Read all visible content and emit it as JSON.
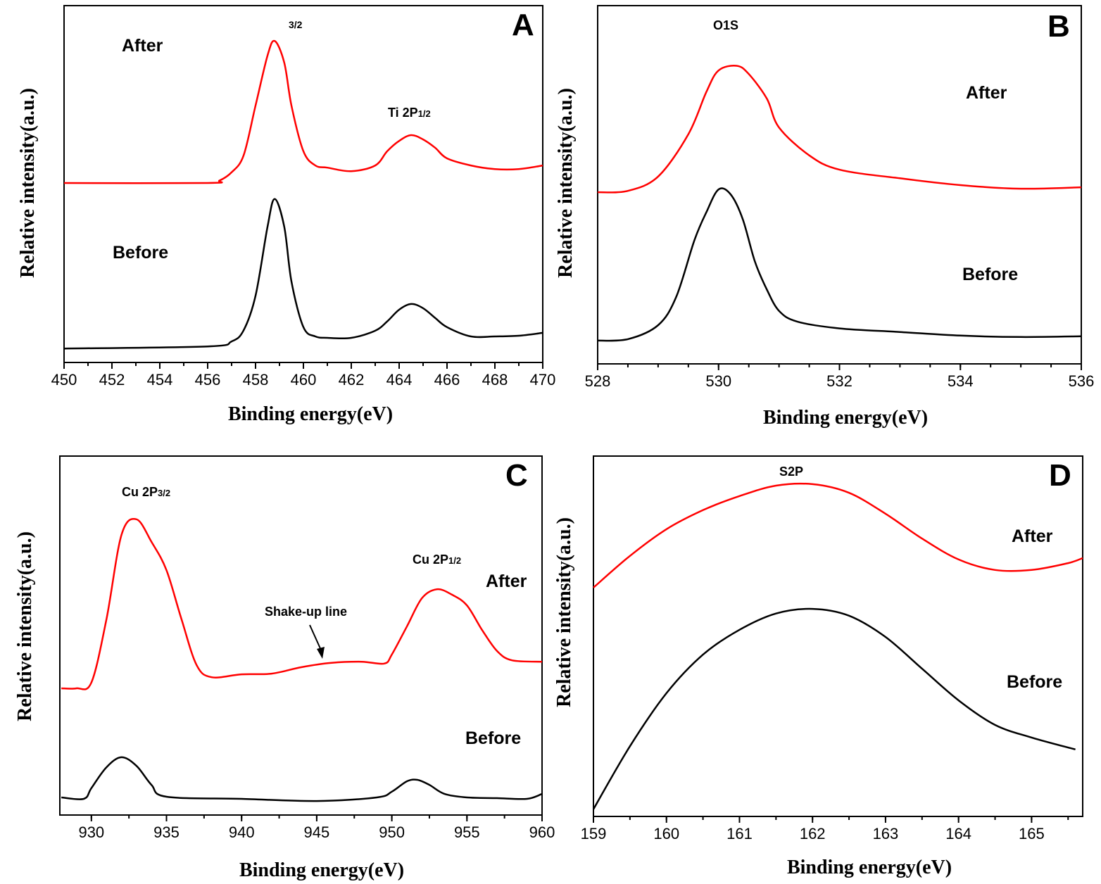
{
  "chart_data": [
    {
      "type": "line",
      "panel": "A",
      "xlabel": "Binding energy(eV)",
      "ylabel": "Relative intensity(a.u.)",
      "xlim": [
        450,
        470
      ],
      "xticks": [
        450,
        452,
        454,
        456,
        458,
        460,
        462,
        464,
        466,
        468,
        470
      ],
      "ylim": [
        0,
        100
      ],
      "grid": false,
      "annotations": [
        {
          "text": "After"
        },
        {
          "text": "Before"
        },
        {
          "text": "",
          "sub": "3/2"
        },
        {
          "text": "Ti 2P",
          "sub": "1/2"
        }
      ],
      "series": [
        {
          "label": "After",
          "color": "#ff0000",
          "points": [
            [
              450,
              50.3
            ],
            [
              456,
              50.3
            ],
            [
              456.5,
              51
            ],
            [
              457,
              53.3
            ],
            [
              457.5,
              58
            ],
            [
              458,
              72
            ],
            [
              458.5,
              86
            ],
            [
              458.8,
              90.1
            ],
            [
              459.2,
              84
            ],
            [
              459.5,
              72
            ],
            [
              460,
              59.2
            ],
            [
              460.5,
              55.2
            ],
            [
              461,
              54.6
            ],
            [
              462,
              53.6
            ],
            [
              463,
              55.2
            ],
            [
              463.5,
              59.2
            ],
            [
              464,
              62.1
            ],
            [
              464.5,
              63.7
            ],
            [
              465,
              62.5
            ],
            [
              465.5,
              60.2
            ],
            [
              466,
              57.2
            ],
            [
              467,
              55.2
            ],
            [
              468,
              54.2
            ],
            [
              469,
              54.2
            ],
            [
              470,
              55.2
            ]
          ]
        },
        {
          "label": "Before",
          "color": "#000000",
          "points": [
            [
              450,
              3.9
            ],
            [
              456,
              4.5
            ],
            [
              457,
              5.9
            ],
            [
              457.5,
              9
            ],
            [
              458,
              18.7
            ],
            [
              458.5,
              38
            ],
            [
              458.8,
              45.8
            ],
            [
              459.2,
              38
            ],
            [
              459.5,
              22.7
            ],
            [
              460,
              9.9
            ],
            [
              460.5,
              7.3
            ],
            [
              461,
              6.9
            ],
            [
              462,
              6.9
            ],
            [
              463,
              8.9
            ],
            [
              463.5,
              11.5
            ],
            [
              464,
              14.8
            ],
            [
              464.5,
              16.4
            ],
            [
              465,
              15.2
            ],
            [
              465.5,
              12.5
            ],
            [
              466,
              9.9
            ],
            [
              467,
              7.3
            ],
            [
              468,
              7.3
            ],
            [
              469,
              7.5
            ],
            [
              470,
              8.3
            ]
          ]
        }
      ]
    },
    {
      "type": "line",
      "panel": "B",
      "xlabel": "Binding energy(eV)",
      "ylabel": "Relative intensity(a.u.)",
      "xlim": [
        528,
        536
      ],
      "xticks": [
        528,
        530,
        532,
        534,
        536
      ],
      "ylim": [
        0,
        100
      ],
      "grid": false,
      "annotations": [
        {
          "text": "O1S"
        },
        {
          "text": "After"
        },
        {
          "text": "Before"
        }
      ],
      "series": [
        {
          "label": "After",
          "color": "#ff0000",
          "points": [
            [
              528,
              47.9
            ],
            [
              528.5,
              48.3
            ],
            [
              529,
              52.3
            ],
            [
              529.5,
              64.1
            ],
            [
              529.8,
              76
            ],
            [
              530,
              81.9
            ],
            [
              530.3,
              83.2
            ],
            [
              530.5,
              80.9
            ],
            [
              530.8,
              74
            ],
            [
              531,
              66
            ],
            [
              531.5,
              58.2
            ],
            [
              532,
              54.2
            ],
            [
              533,
              51.8
            ],
            [
              534,
              49.9
            ],
            [
              535,
              48.9
            ],
            [
              536,
              49.3
            ]
          ]
        },
        {
          "label": "Before",
          "color": "#000000",
          "points": [
            [
              528,
              6.5
            ],
            [
              528.5,
              6.9
            ],
            [
              529,
              10.8
            ],
            [
              529.3,
              18.7
            ],
            [
              529.6,
              34.5
            ],
            [
              529.8,
              42.4
            ],
            [
              530,
              48.7
            ],
            [
              530.2,
              47.3
            ],
            [
              530.4,
              40.4
            ],
            [
              530.6,
              28.6
            ],
            [
              530.8,
              20.7
            ],
            [
              531,
              14.8
            ],
            [
              531.3,
              11.8
            ],
            [
              532,
              9.9
            ],
            [
              533,
              8.9
            ],
            [
              534,
              7.9
            ],
            [
              535,
              7.5
            ],
            [
              536,
              7.7
            ]
          ]
        }
      ]
    },
    {
      "type": "line",
      "panel": "C",
      "xlabel": "Binding energy(eV)",
      "ylabel": "Relative intensity(a.u.)",
      "xlim": [
        927.9,
        960
      ],
      "xticks": [
        930,
        935,
        940,
        945,
        950,
        955,
        960
      ],
      "ylim": [
        0,
        100
      ],
      "grid": false,
      "annotations": [
        {
          "text": "Cu 2P",
          "sub": "3/2"
        },
        {
          "text": "Cu 2P",
          "sub": "1/2"
        },
        {
          "text": "After"
        },
        {
          "text": "Shake-up line"
        },
        {
          "text": "Before"
        }
      ],
      "series": [
        {
          "label": "After",
          "color": "#ff0000",
          "points": [
            [
              928,
              35.3
            ],
            [
              929,
              35.3
            ],
            [
              930,
              36.9
            ],
            [
              931,
              54.5
            ],
            [
              932,
              78
            ],
            [
              933,
              82.4
            ],
            [
              934,
              76.1
            ],
            [
              935,
              68.2
            ],
            [
              936,
              54.5
            ],
            [
              937,
              41.8
            ],
            [
              938,
              38.4
            ],
            [
              940,
              39.2
            ],
            [
              942,
              39.4
            ],
            [
              944,
              41.2
            ],
            [
              946,
              42.4
            ],
            [
              948,
              42.7
            ],
            [
              949.5,
              42.2
            ],
            [
              950,
              44.7
            ],
            [
              951,
              52.5
            ],
            [
              952,
              60.4
            ],
            [
              953,
              62.9
            ],
            [
              954,
              61.4
            ],
            [
              955,
              58.4
            ],
            [
              956,
              51.6
            ],
            [
              957,
              45.7
            ],
            [
              958,
              43.1
            ],
            [
              960,
              42.7
            ]
          ]
        },
        {
          "label": "Before",
          "color": "#000000",
          "points": [
            [
              928,
              4.9
            ],
            [
              929.5,
              4.5
            ],
            [
              930,
              7.5
            ],
            [
              931,
              13.3
            ],
            [
              932,
              16.1
            ],
            [
              933,
              13.7
            ],
            [
              934,
              8.4
            ],
            [
              935,
              5.1
            ],
            [
              940,
              4.5
            ],
            [
              945,
              3.9
            ],
            [
              949,
              4.9
            ],
            [
              950,
              6.5
            ],
            [
              951,
              9.4
            ],
            [
              951.7,
              9.8
            ],
            [
              952.5,
              8.4
            ],
            [
              953.5,
              5.9
            ],
            [
              955,
              4.9
            ],
            [
              957,
              4.7
            ],
            [
              959,
              4.5
            ],
            [
              960,
              5.9
            ]
          ]
        }
      ]
    },
    {
      "type": "line",
      "panel": "D",
      "xlabel": "Binding energy(eV)",
      "ylabel": "Relative intensity(a.u.)",
      "xlim": [
        159,
        165.7
      ],
      "xticks": [
        159,
        160,
        161,
        162,
        163,
        164,
        165
      ],
      "ylim": [
        0,
        100
      ],
      "grid": false,
      "annotations": [
        {
          "text": "S2P"
        },
        {
          "text": "After"
        },
        {
          "text": "Before"
        }
      ],
      "series": [
        {
          "label": "After",
          "color": "#ff0000",
          "points": [
            [
              159,
              63.5
            ],
            [
              159.5,
              72.3
            ],
            [
              160,
              79.7
            ],
            [
              160.5,
              85
            ],
            [
              161,
              88.9
            ],
            [
              161.5,
              91.8
            ],
            [
              162,
              92.2
            ],
            [
              162.5,
              89.8
            ],
            [
              163,
              84
            ],
            [
              163.5,
              77.1
            ],
            [
              164,
              71.3
            ],
            [
              164.5,
              68.4
            ],
            [
              165,
              68.4
            ],
            [
              165.5,
              70.3
            ],
            [
              165.7,
              71.7
            ]
          ]
        },
        {
          "label": "Before",
          "color": "#000000",
          "points": [
            [
              159,
              2
            ],
            [
              159.5,
              19.5
            ],
            [
              160,
              34.2
            ],
            [
              160.5,
              44.9
            ],
            [
              161,
              51.8
            ],
            [
              161.5,
              56.3
            ],
            [
              162,
              57.6
            ],
            [
              162.5,
              55.7
            ],
            [
              163,
              49.8
            ],
            [
              163.5,
              41
            ],
            [
              164,
              32.2
            ],
            [
              164.5,
              25.4
            ],
            [
              165,
              21.9
            ],
            [
              165.6,
              18.6
            ]
          ]
        }
      ]
    }
  ]
}
